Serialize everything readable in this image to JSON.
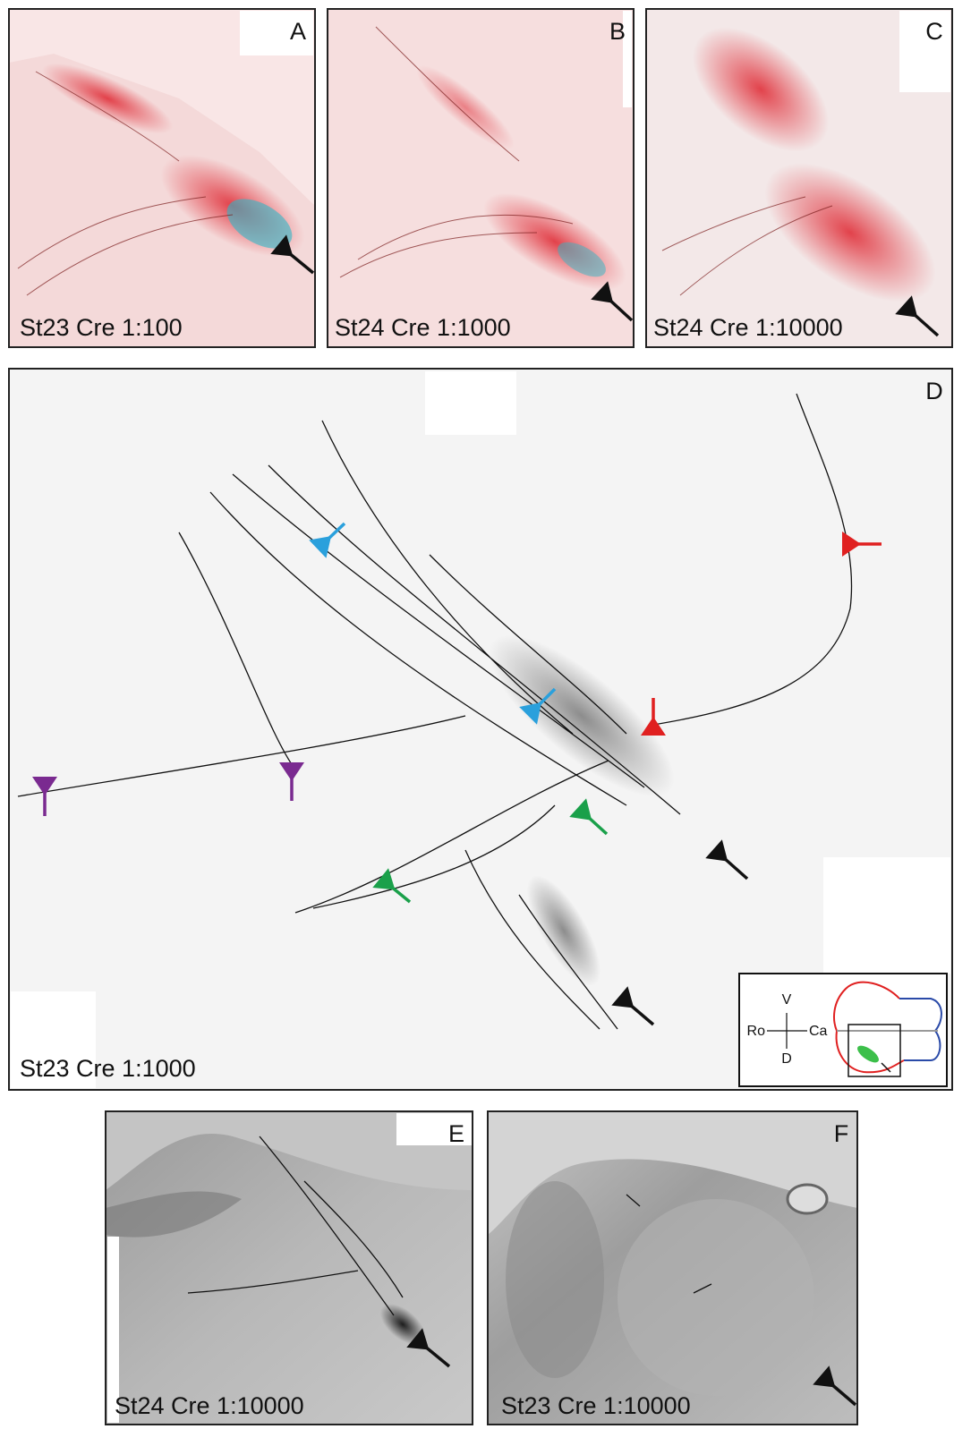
{
  "panels": [
    {
      "letter": "A",
      "caption": "St23 Cre 1:100"
    },
    {
      "letter": "B",
      "caption": "St24 Cre 1:1000"
    },
    {
      "letter": "C",
      "caption": "St24 Cre 1:10000"
    },
    {
      "letter": "D",
      "caption": "St23 Cre 1:1000"
    },
    {
      "letter": "E",
      "caption": "St24 Cre 1:10000"
    },
    {
      "letter": "F",
      "caption": "St23 Cre 1:10000"
    }
  ],
  "inset": {
    "top": "V",
    "bottom": "D",
    "left": "Ro",
    "right": "Ca"
  }
}
